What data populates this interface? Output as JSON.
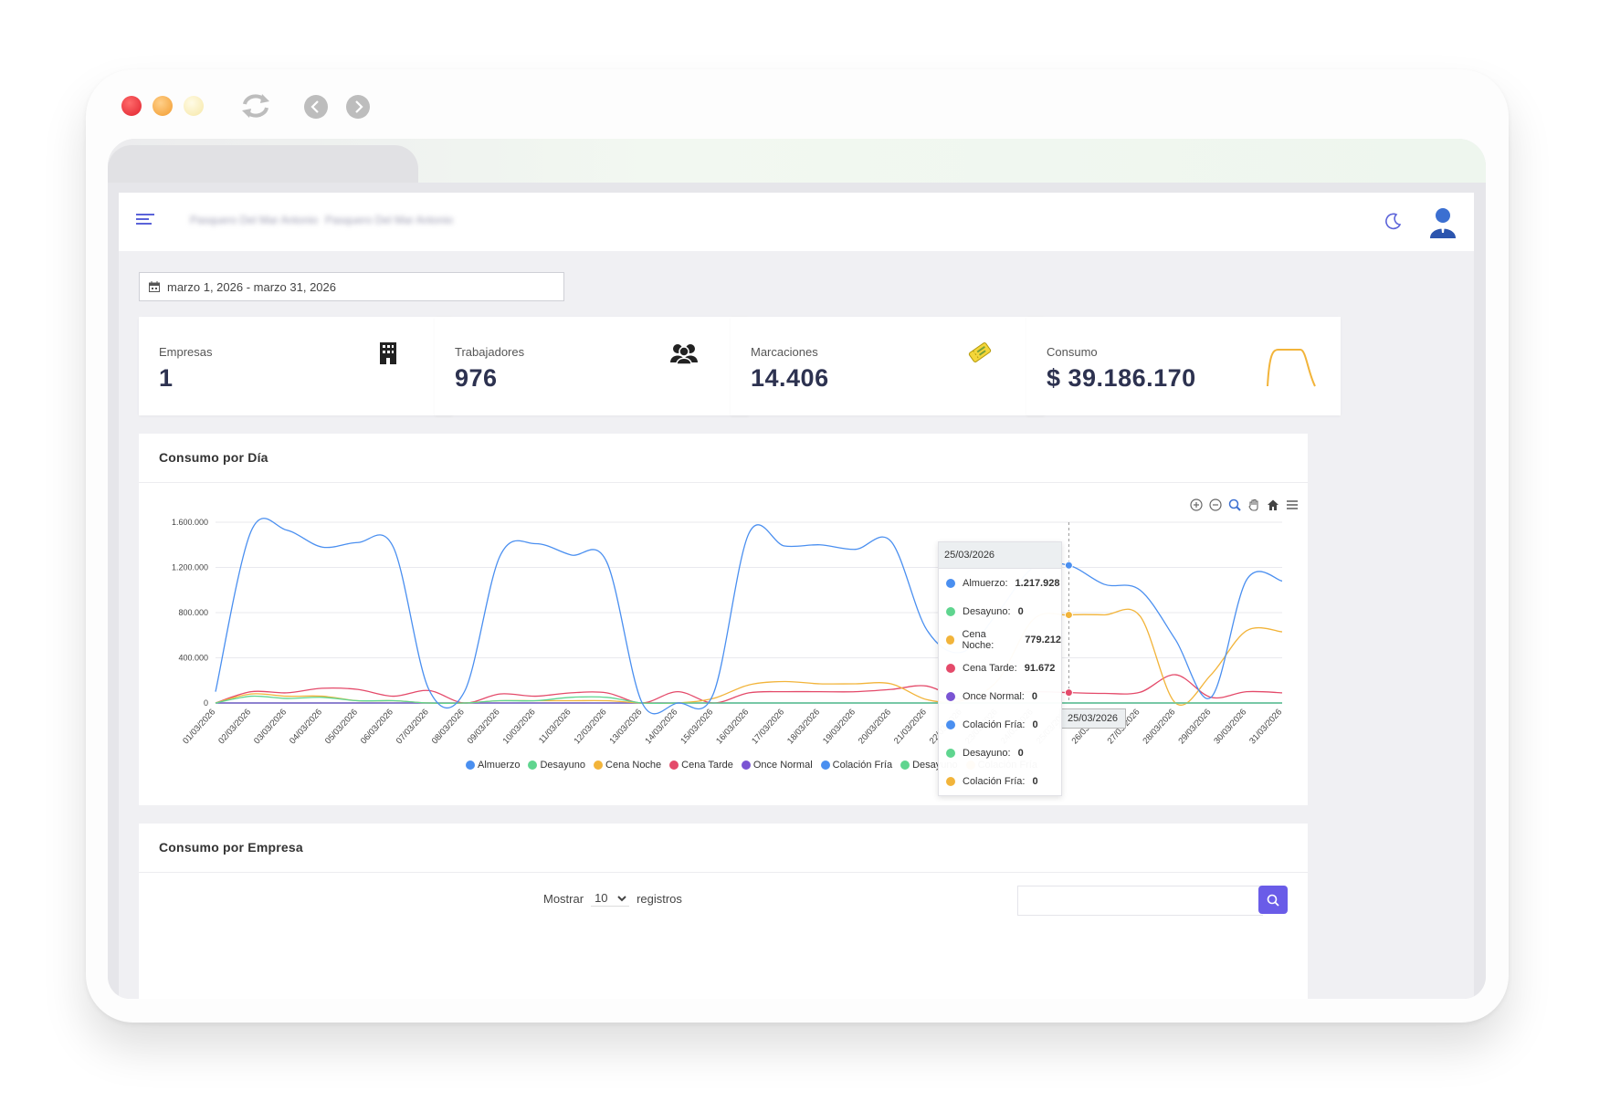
{
  "header": {
    "breadcrumb_1": "Pasquero Del Mar Antonio",
    "breadcrumb_2": "Pasquero Del Mar Antonio"
  },
  "filter": {
    "date_range": "marzo 1, 2026 - marzo 31, 2026"
  },
  "cards": [
    {
      "label": "Empresas",
      "value": "1"
    },
    {
      "label": "Trabajadores",
      "value": "976"
    },
    {
      "label": "Marcaciones",
      "value": "14.406"
    },
    {
      "label": "Consumo",
      "value": "$ 39.186.170"
    }
  ],
  "colors": {
    "almuerzo": "#4a8ff0",
    "desayuno": "#5fd58f",
    "cena_noche": "#f2b43a",
    "cena_tarde": "#e44a6a",
    "once_normal": "#7a54d3",
    "accent": "#6a5ce8"
  },
  "chart_section": {
    "title": "Consumo por Día"
  },
  "tooltip": {
    "date": "25/03/2026",
    "rows": [
      {
        "label": "Almuerzo:",
        "value": "1.217.928",
        "color": "#4a8ff0"
      },
      {
        "label": "Desayuno:",
        "value": "0",
        "color": "#5fd58f"
      },
      {
        "label": "Cena Noche:",
        "value": "779.212",
        "color": "#f2b43a"
      },
      {
        "label": "Cena Tarde:",
        "value": "91.672",
        "color": "#e44a6a"
      },
      {
        "label": "Once Normal:",
        "value": "0",
        "color": "#7a54d3"
      },
      {
        "label": "Colación Fría:",
        "value": "0",
        "color": "#4a8ff0"
      },
      {
        "label": "Desayuno:",
        "value": "0",
        "color": "#5fd58f"
      },
      {
        "label": "Colación Fría:",
        "value": "0",
        "color": "#f2b43a"
      }
    ]
  },
  "x_tooltip": "25/03/2026",
  "legend": [
    {
      "label": "Almuerzo",
      "color": "#4a8ff0"
    },
    {
      "label": "Desayuno",
      "color": "#5fd58f"
    },
    {
      "label": "Cena Noche",
      "color": "#f2b43a"
    },
    {
      "label": "Cena Tarde",
      "color": "#e44a6a"
    },
    {
      "label": "Once Normal",
      "color": "#7a54d3"
    },
    {
      "label": "Colación Fría",
      "color": "#4a8ff0"
    },
    {
      "label": "Desayuno",
      "color": "#5fd58f"
    },
    {
      "label": "Colación Fría",
      "color": "#f2b43a"
    }
  ],
  "chart_data": {
    "type": "line",
    "title": "Consumo por Día",
    "ylim": [
      0,
      1600000
    ],
    "y_ticks": [
      "1.600.000",
      "1.200.000",
      "800.000",
      "400.000",
      "0"
    ],
    "y_tick_values": [
      1600000,
      1200000,
      800000,
      400000,
      0
    ],
    "x": [
      "01/03/2026",
      "02/03/2026",
      "03/03/2026",
      "04/03/2026",
      "05/03/2026",
      "06/03/2026",
      "07/03/2026",
      "08/03/2026",
      "09/03/2026",
      "10/03/2026",
      "11/03/2026",
      "12/03/2026",
      "13/03/2026",
      "14/03/2026",
      "15/03/2026",
      "16/03/2026",
      "17/03/2026",
      "18/03/2026",
      "19/03/2026",
      "20/03/2026",
      "21/03/2026",
      "22/03/2026",
      "23/03/2026",
      "24/03/2026",
      "25/03/2026",
      "26/03/2026",
      "27/03/2026",
      "28/03/2026",
      "29/03/2026",
      "30/03/2026",
      "31/03/2026"
    ],
    "grid": true,
    "legend_position": "bottom",
    "series": [
      {
        "name": "Almuerzo",
        "color": "#4a8ff0",
        "values": [
          100000,
          1520000,
          1530000,
          1380000,
          1420000,
          1380000,
          120000,
          100000,
          1300000,
          1410000,
          1310000,
          1250000,
          0,
          0,
          80000,
          1500000,
          1390000,
          1400000,
          1360000,
          1430000,
          650000,
          450000,
          800000,
          1200000,
          1217928,
          1050000,
          1000000,
          560000,
          50000,
          1090000,
          1080000
        ]
      },
      {
        "name": "Desayuno",
        "color": "#5fd58f",
        "values": [
          0,
          60000,
          40000,
          50000,
          20000,
          20000,
          0,
          0,
          20000,
          20000,
          50000,
          50000,
          0,
          0,
          0,
          0,
          0,
          0,
          0,
          0,
          0,
          0,
          0,
          0,
          0,
          0,
          0,
          0,
          0,
          0,
          0
        ]
      },
      {
        "name": "Cena Noche",
        "color": "#f2b43a",
        "values": [
          0,
          80000,
          60000,
          60000,
          20000,
          20000,
          0,
          0,
          20000,
          20000,
          20000,
          20000,
          0,
          0,
          40000,
          160000,
          190000,
          170000,
          170000,
          170000,
          30000,
          20000,
          200000,
          740000,
          779212,
          780000,
          770000,
          0,
          250000,
          640000,
          630000
        ]
      },
      {
        "name": "Cena Tarde",
        "color": "#e44a6a",
        "values": [
          0,
          100000,
          90000,
          130000,
          120000,
          60000,
          110000,
          0,
          80000,
          60000,
          90000,
          90000,
          0,
          100000,
          0,
          90000,
          100000,
          100000,
          100000,
          120000,
          150000,
          30000,
          80000,
          100000,
          91672,
          85000,
          95000,
          250000,
          50000,
          100000,
          90000
        ]
      },
      {
        "name": "Once Normal",
        "color": "#7a54d3",
        "values": [
          0,
          0,
          0,
          0,
          0,
          0,
          0,
          0,
          0,
          0,
          0,
          0,
          0,
          0,
          0,
          0,
          0,
          0,
          0,
          0,
          0,
          0,
          0,
          0,
          0,
          0,
          0,
          0,
          0,
          0,
          0
        ]
      },
      {
        "name": "Colación Fría",
        "color": "#4a8ff0",
        "values": [
          0,
          0,
          0,
          0,
          0,
          0,
          0,
          0,
          0,
          0,
          0,
          0,
          0,
          0,
          0,
          0,
          0,
          0,
          0,
          0,
          0,
          0,
          0,
          0,
          0,
          0,
          0,
          0,
          0,
          0,
          0
        ]
      },
      {
        "name": "Desayuno",
        "color": "#5fd58f",
        "values": [
          0,
          0,
          0,
          0,
          0,
          0,
          0,
          0,
          0,
          0,
          0,
          0,
          0,
          0,
          0,
          0,
          0,
          0,
          0,
          0,
          0,
          0,
          0,
          0,
          0,
          0,
          0,
          0,
          0,
          0,
          0
        ]
      },
      {
        "name": "Colación Fría",
        "color": "#f2b43a",
        "values": [
          0,
          0,
          0,
          0,
          0,
          0,
          0,
          0,
          0,
          0,
          0,
          0,
          0,
          0,
          0,
          0,
          0,
          0,
          0,
          0,
          0,
          0,
          0,
          0,
          0,
          0,
          0,
          0,
          0,
          0,
          0
        ]
      }
    ]
  },
  "table_section": {
    "title": "Consumo por Empresa"
  },
  "table_controls": {
    "show_label": "Mostrar",
    "page_size": "10",
    "records_label": "registros",
    "search_placeholder": ""
  }
}
